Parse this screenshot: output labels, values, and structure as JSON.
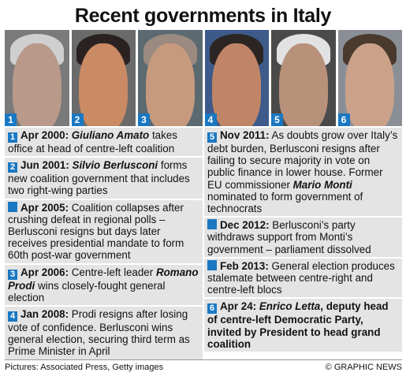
{
  "title": "Recent governments in Italy",
  "colors": {
    "accent": "#1a78c2",
    "panel": "#e4e4e4"
  },
  "photos": [
    {
      "badge": "1",
      "skin": "#b8998a",
      "hair": "#cfcfcf",
      "bg": "#7a7a7a"
    },
    {
      "badge": "2",
      "skin": "#c98a64",
      "hair": "#2a2220",
      "bg": "#6a6a6a"
    },
    {
      "badge": "3",
      "skin": "#c79a7e",
      "hair": "#9a8a80",
      "bg": "#5b6a70"
    },
    {
      "badge": "4",
      "skin": "#c08566",
      "hair": "#2b2624",
      "bg": "#3d5a8a"
    },
    {
      "badge": "5",
      "skin": "#b8917a",
      "hair": "#e2e2e2",
      "bg": "#4a4a4a"
    },
    {
      "badge": "6",
      "skin": "#caa28a",
      "hair": "#4a3a2e",
      "bg": "#8a8f96"
    }
  ],
  "left_entries": [
    {
      "marker": "1",
      "date": "Apr 2000:",
      "name": "Giuliano Amato",
      "pre": "",
      "text": " takes office at head of centre-left coalition"
    },
    {
      "marker": "2",
      "date": "Jun 2001:",
      "name": "Silvio Berlusconi",
      "pre": "",
      "text": " forms new coalition government that includes two right-wing parties"
    },
    {
      "marker": "",
      "date": "Apr 2005:",
      "name": "",
      "pre": "",
      "text": " Coalition collapses after crushing defeat in regional polls – Berlusconi resigns but days later receives presidential mandate to form 60th post-war government"
    },
    {
      "marker": "3",
      "date": "Apr 2006:",
      "name": "Romano Prodi",
      "pre": " Centre-left leader ",
      "text": " wins closely-fought general election"
    },
    {
      "marker": "4",
      "date": "Jan 2008:",
      "name": "",
      "pre": "",
      "text": " Prodi resigns after losing vote of confidence. Berlusconi wins general election, securing third term as Prime Minister in April"
    }
  ],
  "right_entries": [
    {
      "marker": "5",
      "date": "Nov 2011:",
      "name": "Mario Monti",
      "pre": " As doubts grow over Italy’s debt burden, Berlusconi resigns after failing to secure majority in vote on public finance in lower house. Former EU commissioner ",
      "text": " nominated to form government of technocrats"
    },
    {
      "marker": "",
      "date": "Dec 2012:",
      "name": "",
      "pre": "",
      "text": " Berlusconi’s party withdraws support from Monti’s government – parliament dissolved"
    },
    {
      "marker": "",
      "date": "Feb 2013:",
      "name": "",
      "pre": "",
      "text": " General election produces stalemate between centre-right and centre-left blocs"
    },
    {
      "marker": "6",
      "date": "Apr 24:",
      "name": "Enrico Letta",
      "pre": " ",
      "text": ", deputy head of centre-left Democratic Party, invited by President to head grand coalition",
      "all_bold": true
    }
  ],
  "footer": {
    "credits": "Pictures: Associated Press, Getty images",
    "brand": "© GRAPHIC NEWS"
  }
}
